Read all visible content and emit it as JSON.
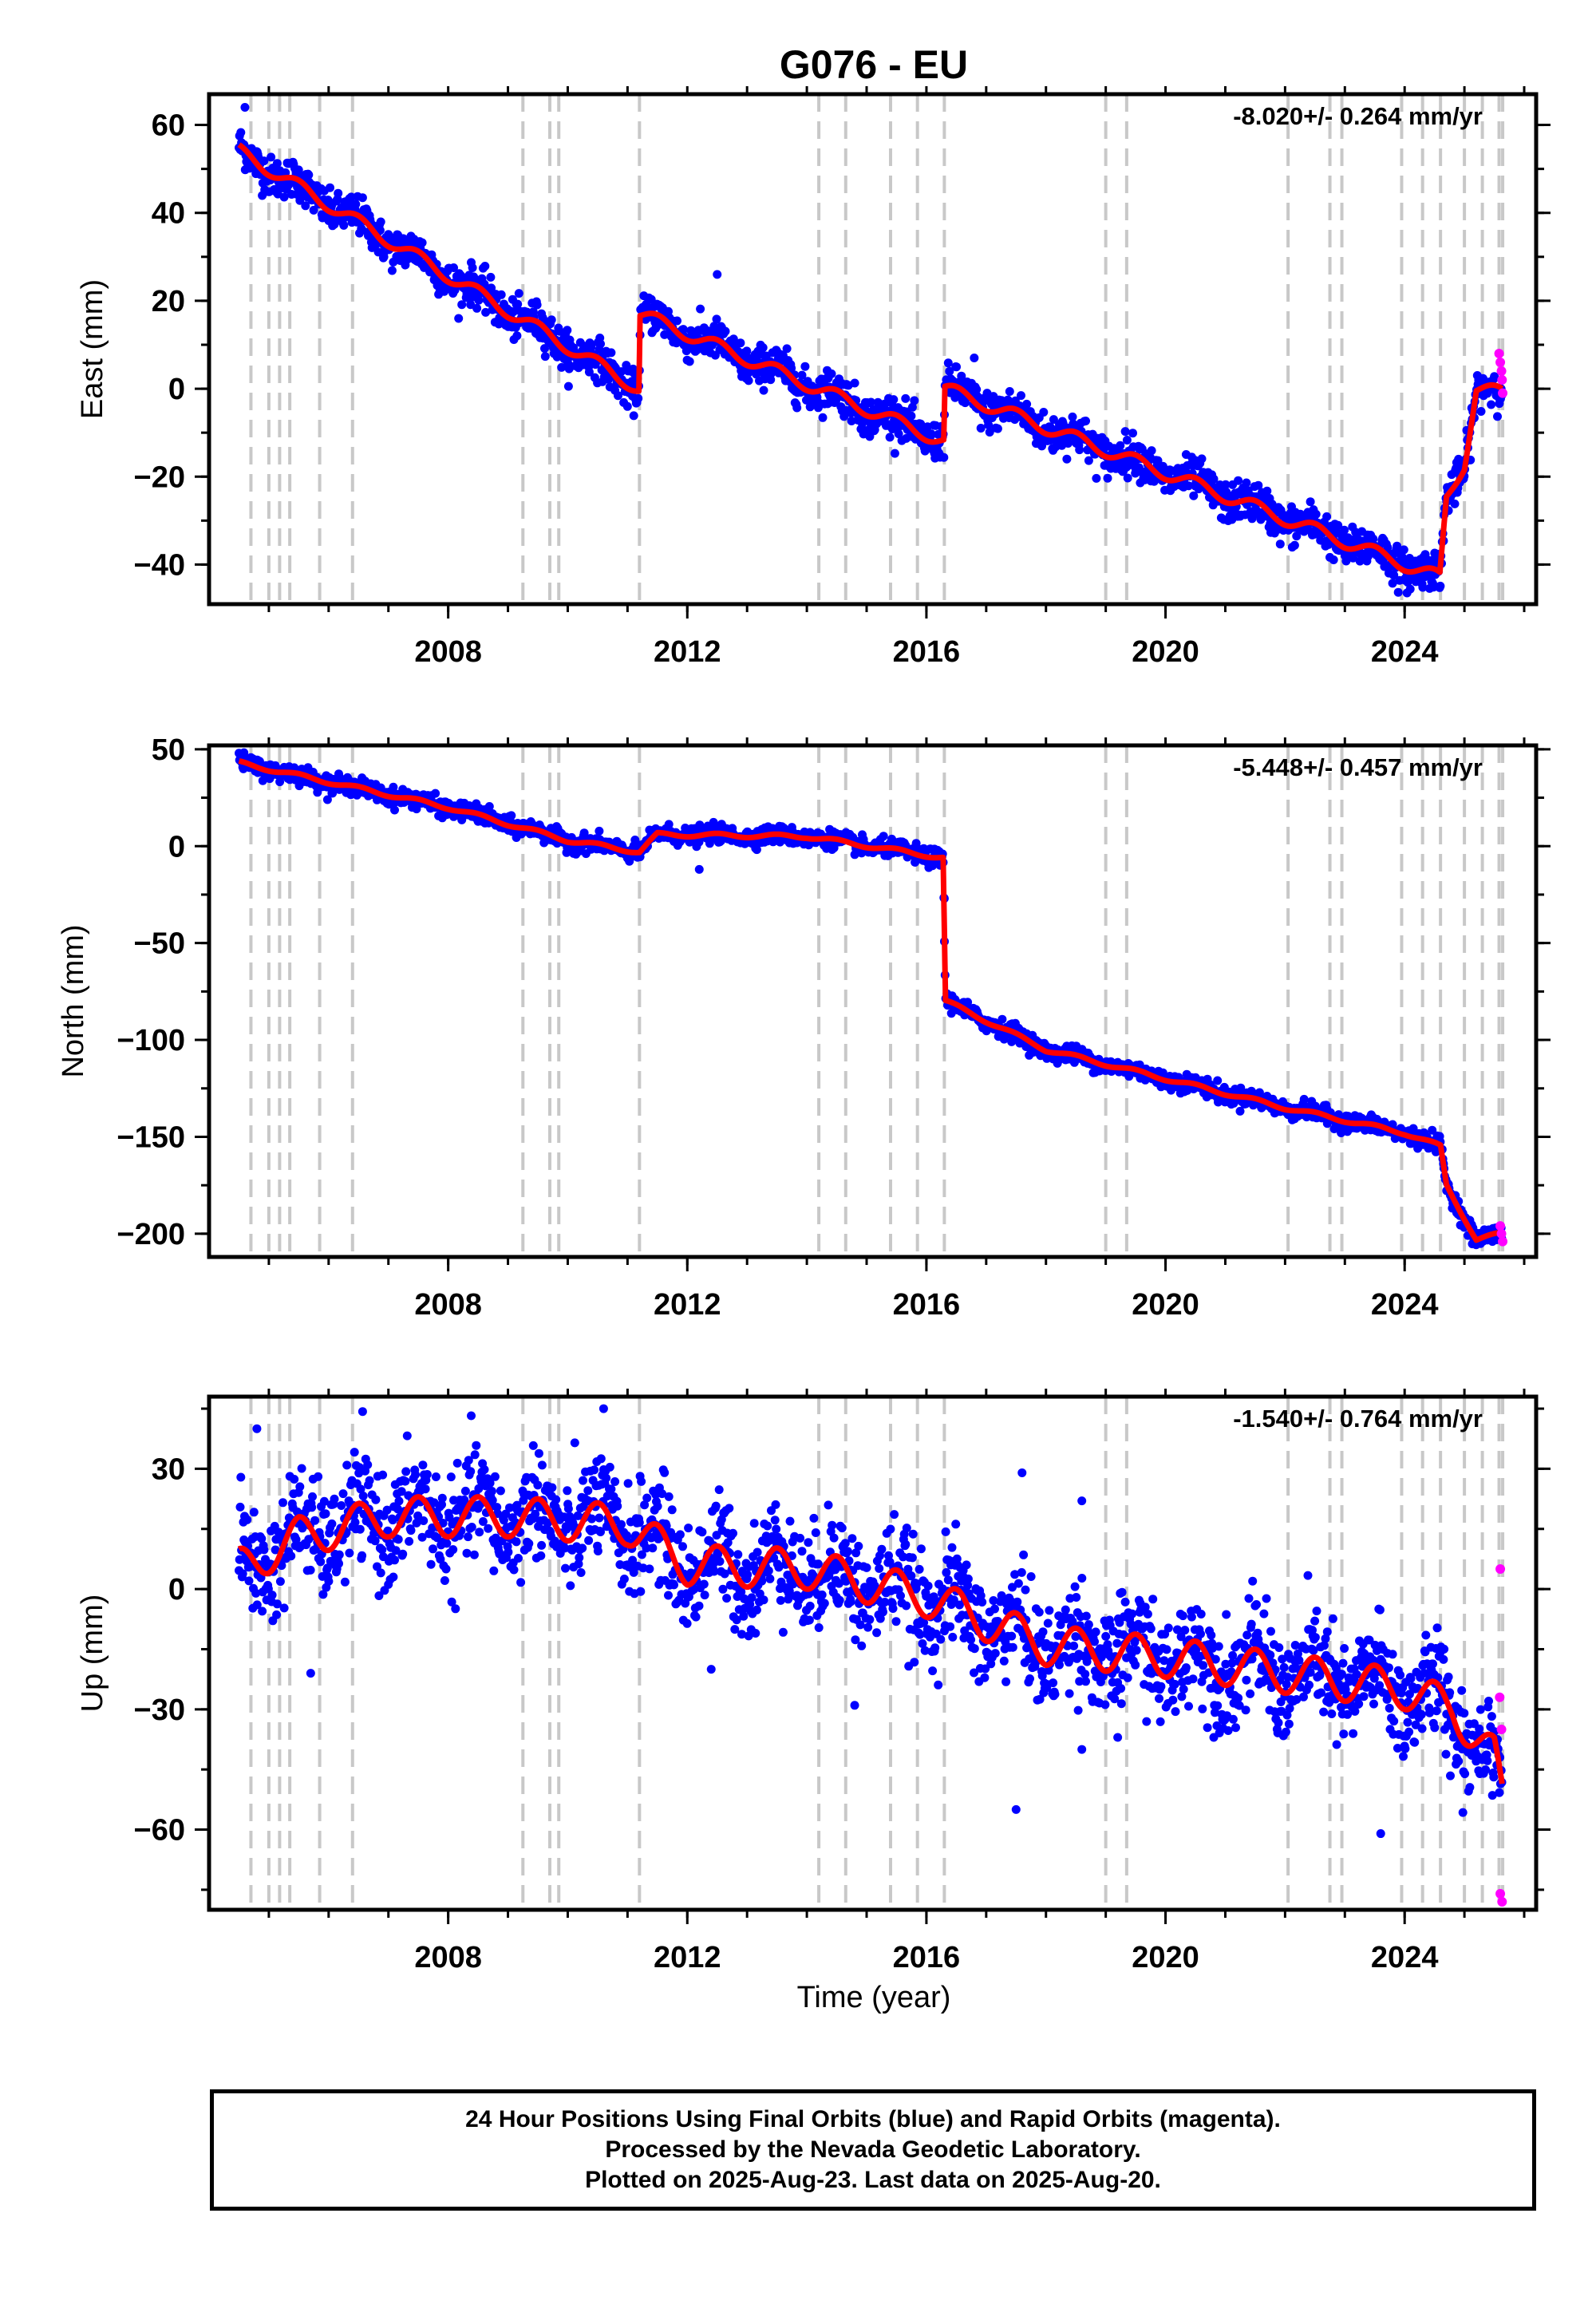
{
  "title": "G076 - EU",
  "xlabel": "Time (year)",
  "footer": {
    "line1": "24 Hour Positions Using Final Orbits (blue) and Rapid Orbits (magenta).",
    "line2": "Processed by the Nevada Geodetic Laboratory.",
    "line3": "Plotted on 2025-Aug-23. Last data on 2025-Aug-20."
  },
  "colors": {
    "final": "#0000ff",
    "rapid": "#ff00ff",
    "model": "#ff0000",
    "steps": "#c8c8c8"
  },
  "chart_data": [
    {
      "type": "scatter",
      "panel": "East",
      "ylabel": "East (mm)",
      "rate_label": "-8.020+/- 0.264 mm/yr",
      "xlim": [
        2004.0,
        2026.2
      ],
      "ylim": [
        -49,
        67
      ],
      "xticks": [
        2008,
        2012,
        2016,
        2020,
        2024
      ],
      "yticks": [
        -40,
        -20,
        0,
        20,
        40,
        60
      ],
      "grid": false,
      "rate": -8.02,
      "noise": 2.2,
      "seasonal_amp": 1.5,
      "steps": [
        {
          "t": 2011.2,
          "size": 16
        },
        {
          "t": 2016.3,
          "size": 12
        },
        {
          "t": 2024.6,
          "size": 14
        },
        {
          "t": 2024.9,
          "size": 12
        },
        {
          "t": 2025.1,
          "size": 12
        }
      ],
      "anchors": [
        [
          2004.5,
          54
        ],
        [
          2011.19,
          0
        ],
        [
          2011.21,
          17
        ],
        [
          2016.29,
          -12
        ],
        [
          2016.31,
          0
        ],
        [
          2024.59,
          -43
        ],
        [
          2024.7,
          -25
        ],
        [
          2025.0,
          -17
        ],
        [
          2025.2,
          0
        ],
        [
          2025.63,
          -1
        ]
      ],
      "rapid_points": [
        [
          2025.58,
          8
        ],
        [
          2025.6,
          6
        ],
        [
          2025.62,
          4
        ],
        [
          2025.63,
          2
        ],
        [
          2025.64,
          -1
        ]
      ],
      "outliers": [
        [
          2012.5,
          26
        ],
        [
          2004.6,
          64
        ],
        [
          2016.8,
          7
        ]
      ]
    },
    {
      "type": "scatter",
      "panel": "North",
      "ylabel": "North (mm)",
      "rate_label": "-5.448+/- 0.457 mm/yr",
      "xlim": [
        2004.0,
        2026.2
      ],
      "ylim": [
        -212,
        52
      ],
      "xticks": [
        2008,
        2012,
        2016,
        2020,
        2024
      ],
      "yticks": [
        -200,
        -150,
        -100,
        -50,
        0,
        50
      ],
      "grid": false,
      "rate": -5.448,
      "noise": 2.2,
      "seasonal_amp": 1.0,
      "anchors": [
        [
          2004.5,
          43
        ],
        [
          2008.0,
          20
        ],
        [
          2010.0,
          3
        ],
        [
          2011.2,
          -3
        ],
        [
          2011.5,
          6
        ],
        [
          2014.0,
          5
        ],
        [
          2016.28,
          -6
        ],
        [
          2016.32,
          -80
        ],
        [
          2018.0,
          -105
        ],
        [
          2020.0,
          -120
        ],
        [
          2022.0,
          -135
        ],
        [
          2024.0,
          -148
        ],
        [
          2024.6,
          -155
        ],
        [
          2024.7,
          -175
        ],
        [
          2025.2,
          -203
        ],
        [
          2025.63,
          -200
        ]
      ],
      "rapid_points": [
        [
          2025.6,
          -196
        ],
        [
          2025.62,
          -200
        ],
        [
          2025.64,
          -204
        ]
      ],
      "outliers": [
        [
          2012.2,
          -12
        ],
        [
          2016.3,
          -27
        ]
      ]
    },
    {
      "type": "scatter",
      "panel": "Up",
      "ylabel": "Up (mm)",
      "rate_label": "-1.540+/- 0.764 mm/yr",
      "xlim": [
        2004.0,
        2026.2
      ],
      "ylim": [
        -80,
        48
      ],
      "xticks": [
        2008,
        2012,
        2016,
        2020,
        2024
      ],
      "yticks": [
        -60,
        -30,
        0,
        30
      ],
      "grid": false,
      "rate": -1.54,
      "noise": 6.5,
      "seasonal_amp": 5.0,
      "anchors": [
        [
          2004.5,
          5
        ],
        [
          2005.5,
          13
        ],
        [
          2007.0,
          18
        ],
        [
          2009.0,
          18
        ],
        [
          2011.0,
          16
        ],
        [
          2012.0,
          6
        ],
        [
          2014.0,
          5
        ],
        [
          2016.0,
          -2
        ],
        [
          2018.0,
          -14
        ],
        [
          2020.0,
          -17
        ],
        [
          2022.0,
          -21
        ],
        [
          2024.0,
          -25
        ],
        [
          2024.8,
          -30
        ],
        [
          2025.5,
          -42
        ],
        [
          2025.63,
          -52
        ]
      ],
      "rapid_points": [
        [
          2025.6,
          5
        ],
        [
          2025.59,
          -27
        ],
        [
          2025.62,
          -35
        ],
        [
          2025.6,
          -76
        ],
        [
          2025.63,
          -78
        ]
      ],
      "outliers": [
        [
          2004.8,
          40
        ],
        [
          2005.7,
          -21
        ],
        [
          2017.6,
          29
        ],
        [
          2017.5,
          -55
        ],
        [
          2018.6,
          22
        ],
        [
          2018.6,
          -40
        ],
        [
          2019.2,
          -37
        ],
        [
          2023.6,
          -61
        ],
        [
          2010.6,
          45
        ],
        [
          2014.8,
          -29
        ],
        [
          2012.4,
          -20
        ]
      ]
    }
  ],
  "step_dates": [
    2004.7,
    2005.0,
    2005.18,
    2005.35,
    2005.85,
    2006.4,
    2009.25,
    2009.7,
    2009.85,
    2011.2,
    2014.2,
    2014.65,
    2015.4,
    2015.85,
    2016.3,
    2019.0,
    2019.35,
    2022.05,
    2022.75,
    2022.95,
    2023.95,
    2024.3,
    2024.6,
    2025.0,
    2025.3,
    2025.58,
    2025.64
  ]
}
